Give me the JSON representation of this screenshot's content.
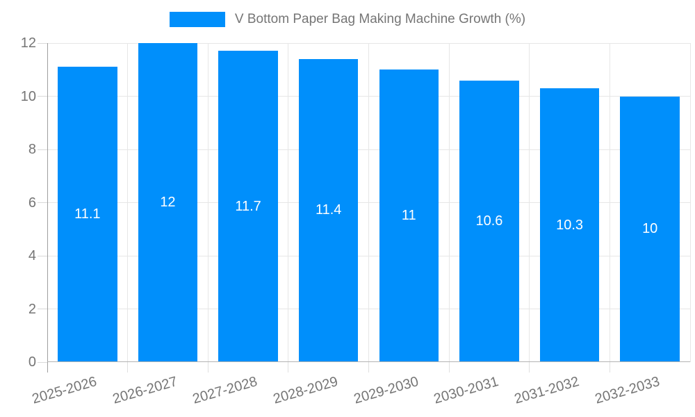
{
  "chart_data": {
    "type": "bar",
    "title": "V Bottom Paper Bag Making Machine Growth (%)",
    "categories": [
      "2025-2026",
      "2026-2027",
      "2027-2028",
      "2028-2029",
      "2029-2030",
      "2030-2031",
      "2031-2032",
      "2032-2033"
    ],
    "values": [
      11.1,
      12,
      11.7,
      11.4,
      11,
      10.6,
      10.3,
      10
    ],
    "xlabel": "",
    "ylabel": "",
    "ylim": [
      0,
      12
    ],
    "yticks": [
      0,
      2,
      4,
      6,
      8,
      10,
      12
    ],
    "grid": true,
    "legend_position": "top"
  },
  "colors": {
    "bar": "#008FFB",
    "value_label": "#ffffff",
    "axis_text": "#757575",
    "gridline": "#e6e6e6",
    "baseline": "#b3b3b3",
    "axis_line": "#9e9e9e",
    "tick": "#d9d9d9"
  }
}
